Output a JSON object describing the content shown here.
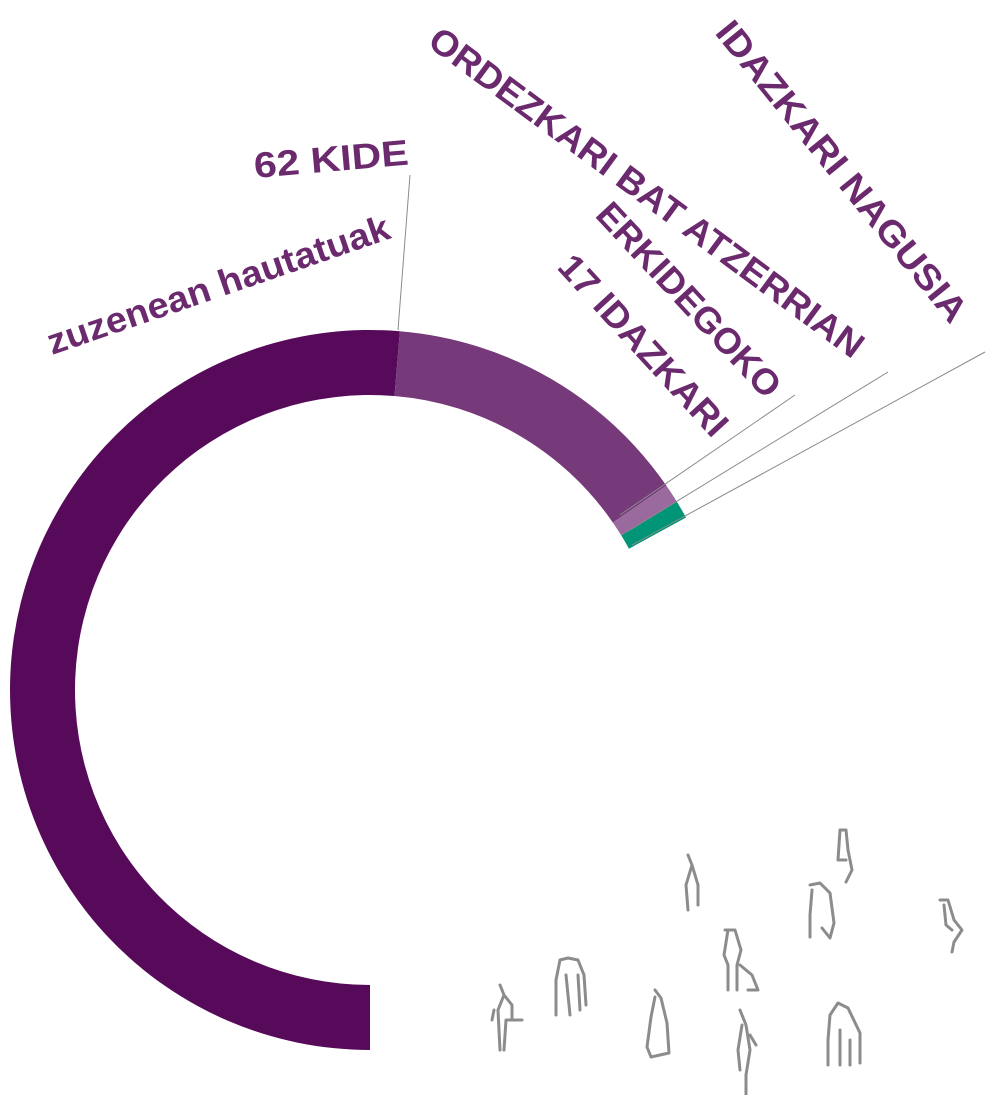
{
  "chart_data": {
    "type": "donut",
    "labels": [
      [
        "62 KIDE",
        "zuzenean hautatuak"
      ],
      [
        "17 IDAZKARI",
        "ERKIDEGOKO"
      ],
      [
        "ORDEZKARI BAT ATZERRIAN"
      ],
      [
        "IDAZKARI NAGUSIA"
      ]
    ],
    "values": [
      62,
      17,
      1,
      1
    ],
    "colors": [
      "#560a59",
      "#76397a",
      "#9a6a9e",
      "#009577"
    ]
  }
}
